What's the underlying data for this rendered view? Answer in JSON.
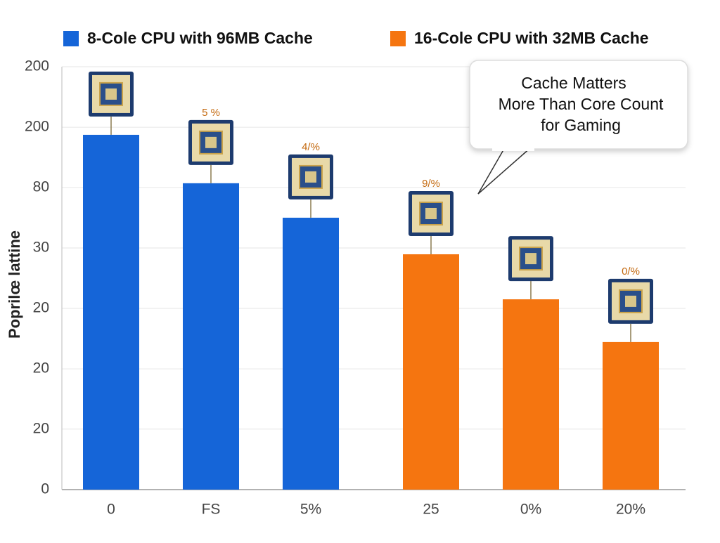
{
  "chart_data": {
    "type": "bar",
    "y_label": "Poprilœ lattine",
    "categories": [
      "0",
      "FS",
      "5%",
      "25",
      "0%",
      "20%"
    ],
    "series": [
      {
        "name": "8-Cole CPU with 96MB Cache",
        "color": "#1565d8",
        "values": [
          167.8,
          144.9,
          128.6,
          null,
          null,
          null
        ]
      },
      {
        "name": "16-Cole CPU with 32MB Cache",
        "color": "#f57510",
        "values": [
          null,
          null,
          null,
          111.3,
          90.0,
          69.8
        ]
      }
    ],
    "bar_notes": [
      null,
      "5 %",
      "4/%",
      "9/%",
      null,
      "0/%"
    ],
    "callout": [
      "Cache Matters",
      "More Than Core Count",
      "for Gaming"
    ],
    "ylim": [
      0,
      200
    ],
    "yticks": [
      0,
      {
        "value": 28.6,
        "label": "20"
      },
      {
        "value": 57.1,
        "label": "20"
      },
      {
        "value": 85.7,
        "label": "20"
      },
      {
        "value": 114.3,
        "label": "30"
      },
      {
        "value": 142.9,
        "label": "80"
      },
      {
        "value": 171.4,
        "label": "200"
      },
      200
    ],
    "grid": true
  }
}
